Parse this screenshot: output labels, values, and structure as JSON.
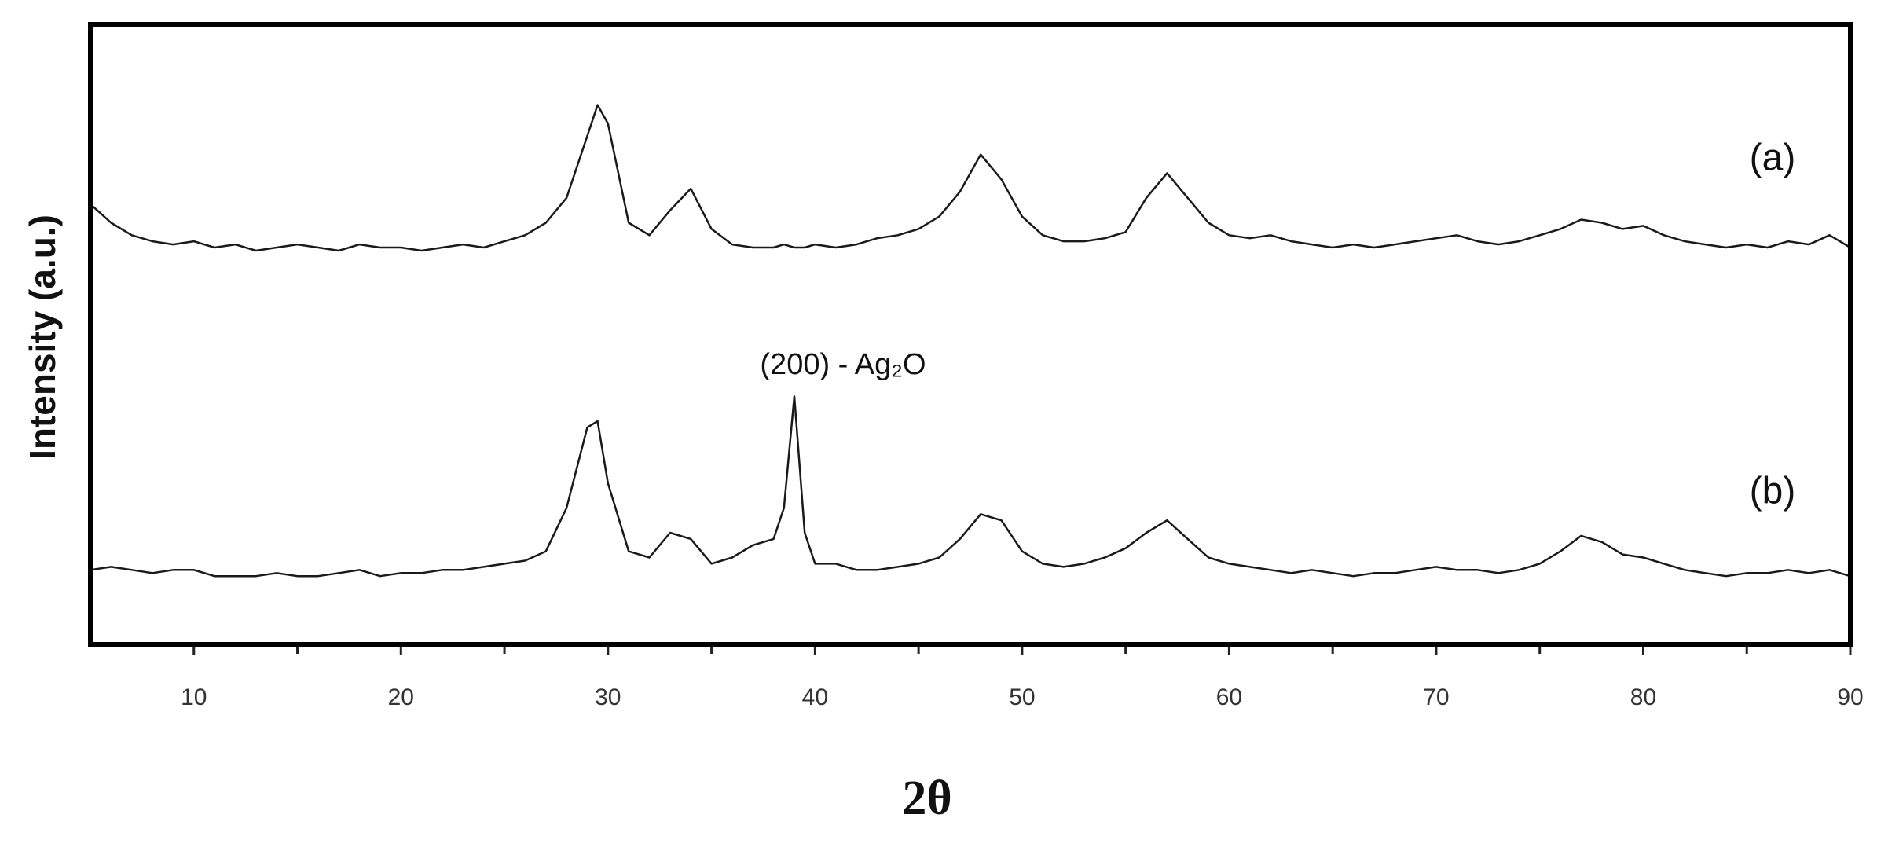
{
  "chart_data": {
    "type": "line",
    "y_label": "Intensity (a.u.)",
    "x_label": "2θ",
    "annotation": "(200) - Ag₂O",
    "xlim": [
      5,
      90
    ],
    "ylim": [
      0,
      100
    ],
    "xticks": [
      10,
      20,
      30,
      40,
      50,
      60,
      70,
      80,
      90
    ],
    "minor_xticks": [
      15,
      25,
      35,
      45,
      55,
      65,
      75,
      85
    ],
    "x": [
      5,
      6,
      7,
      8,
      9,
      10,
      11,
      12,
      13,
      14,
      15,
      16,
      17,
      18,
      19,
      20,
      21,
      22,
      23,
      24,
      25,
      26,
      27,
      28,
      29,
      29.5,
      30,
      31,
      32,
      33,
      34,
      35,
      36,
      37,
      38,
      38.5,
      39,
      39.5,
      40,
      41,
      42,
      43,
      44,
      45,
      46,
      47,
      48,
      49,
      50,
      51,
      52,
      53,
      54,
      55,
      56,
      57,
      58,
      59,
      60,
      61,
      62,
      63,
      64,
      65,
      66,
      67,
      68,
      69,
      70,
      71,
      72,
      73,
      74,
      75,
      76,
      77,
      78,
      79,
      80,
      81,
      82,
      83,
      84,
      85,
      86,
      87,
      88,
      89,
      90
    ],
    "series": [
      {
        "name": "(a)",
        "color": "#1a1a1a",
        "values": [
          71,
          68,
          66,
          65,
          64.5,
          65,
          64,
          64.5,
          63.5,
          64,
          64.5,
          64,
          63.5,
          64.5,
          64,
          64,
          63.5,
          64,
          64.5,
          64,
          65,
          66,
          68,
          72,
          82,
          87,
          84,
          68,
          66,
          70,
          73.5,
          67,
          64.5,
          64,
          64,
          64.5,
          64,
          64,
          64.5,
          64,
          64.5,
          65.5,
          66,
          67,
          69,
          73,
          79,
          75,
          69,
          66,
          65,
          65,
          65.5,
          66.5,
          72,
          76,
          72,
          68,
          66,
          65.5,
          66,
          65,
          64.5,
          64,
          64.5,
          64,
          64.5,
          65,
          65.5,
          66,
          65,
          64.5,
          65,
          66,
          67,
          68.5,
          68,
          67,
          67.5,
          66,
          65,
          64.5,
          64,
          64.5,
          64,
          65,
          64.5,
          66,
          64
        ]
      },
      {
        "name": "(b)",
        "color": "#1a1a1a",
        "values": [
          12,
          12.5,
          12,
          11.5,
          12,
          12,
          11,
          11,
          11,
          11.5,
          11,
          11,
          11.5,
          12,
          11,
          11.5,
          11.5,
          12,
          12,
          12.5,
          13,
          13.5,
          15,
          22,
          35,
          36,
          26,
          15,
          14,
          18,
          17,
          13,
          14,
          16,
          17,
          22,
          40,
          18,
          13,
          13,
          12,
          12,
          12.5,
          13,
          14,
          17,
          21,
          20,
          15,
          13,
          12.5,
          13,
          14,
          15.5,
          18,
          20,
          17,
          14,
          13,
          12.5,
          12,
          11.5,
          12,
          11.5,
          11,
          11.5,
          11.5,
          12,
          12.5,
          12,
          12,
          11.5,
          12,
          13,
          15,
          17.5,
          16.5,
          14.5,
          14,
          13,
          12,
          11.5,
          11,
          11.5,
          11.5,
          12,
          11.5,
          12,
          11
        ]
      }
    ]
  }
}
